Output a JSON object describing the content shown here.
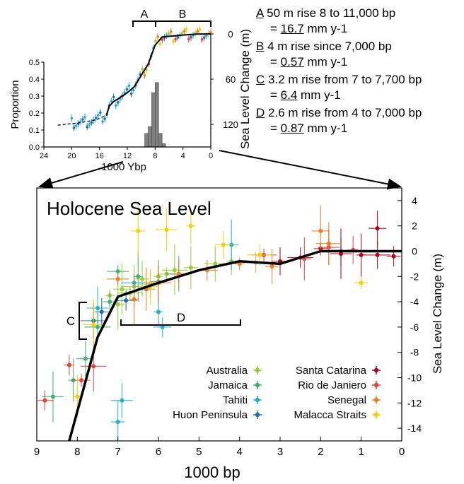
{
  "notes": [
    {
      "letter": "A",
      "text": "50 m rise 8 to 11,000 bp",
      "prefix": "= ",
      "value": "16.7",
      "unit": "mm y-1"
    },
    {
      "letter": "B",
      "text": "4 m rise since 7,000 bp",
      "prefix": "= ",
      "value": "0.57",
      "unit": "mm y-1"
    },
    {
      "letter": "C",
      "text": "3.2 m rise from 7 to 7,700 bp",
      "prefix": "= ",
      "value": "6.4",
      "unit": "mm y-1"
    },
    {
      "letter": "D",
      "text": "2.6 m rise from 4 to 7,000 bp",
      "prefix": "= ",
      "value": "0.87",
      "unit": "mm y-1"
    }
  ],
  "inset": {
    "bracket_a": "A",
    "bracket_b": "B"
  },
  "main": {
    "bracket_c": "C",
    "bracket_d": "D"
  },
  "colors": {
    "Australia": "#9acd32",
    "Jamaica": "#3cb371",
    "Tahiti": "#20b2cc",
    "Huon Peninsula": "#1f6fb4",
    "Santa Catarina": "#b00018",
    "Rio de Janiero": "#e8413c",
    "Senegal": "#f07b22",
    "Malacca Straits": "#f5d000",
    "curve": "#000000",
    "histogram": "#808080"
  },
  "chart_data": [
    {
      "type": "line",
      "title": "",
      "xlabel": "1000 Ybp",
      "ylabel": "Proportion",
      "y2label": "Sea Level Change (m)",
      "xlim": [
        24,
        0
      ],
      "ylim": [
        0,
        0.5
      ],
      "y2lim": [
        150,
        0
      ],
      "x_ticks": [
        24,
        20,
        16,
        12,
        8,
        4,
        0
      ],
      "y_ticks": [
        0.0,
        0.1,
        0.2,
        0.3,
        0.4,
        0.5
      ],
      "y2_ticks": [
        0,
        60,
        120
      ],
      "series": [
        {
          "style": "sea-level-curve",
          "x": [
            22.0,
            19.0,
            16.5,
            15.0,
            14.6,
            14.0,
            13.0,
            12.0,
            11.0,
            10.0,
            9.0,
            8.0,
            7.0,
            4.0,
            2.0,
            0.0
          ],
          "y": [
            121,
            118,
            114,
            108,
            96,
            90,
            84,
            78,
            70,
            55,
            40,
            15,
            4,
            1.5,
            0.2,
            0
          ]
        },
        {
          "style": "proportion-histogram",
          "x": [
            9.25,
            8.75,
            8.25,
            7.75,
            7.25,
            6.75
          ],
          "y": [
            0.08,
            0.12,
            0.32,
            0.38,
            0.08,
            0.02
          ]
        }
      ]
    },
    {
      "type": "scatter",
      "title": "Holocene Sea Level",
      "xlabel": "1000 bp",
      "ylabel": "Sea Level Change (m)",
      "xlim": [
        9,
        0
      ],
      "ylim": [
        -15,
        5
      ],
      "x_ticks": [
        9,
        8,
        7,
        6,
        5,
        4,
        3,
        2,
        1,
        0
      ],
      "y_ticks": [
        4,
        2,
        0,
        -2,
        -4,
        -6,
        -8,
        -10,
        -12,
        -14
      ],
      "grid": false,
      "legend": "bottom-right",
      "legend_entries": [
        "Australia",
        "Jamaica",
        "Tahiti",
        "Huon Peninsula",
        "Santa Catarina",
        "Rio de Janiero",
        "Senegal",
        "Malacca Straits"
      ],
      "curve": {
        "x": [
          8.2,
          7.5,
          7.0,
          6.0,
          5.0,
          4.0,
          3.0,
          2.0,
          1.0,
          0.0
        ],
        "y": [
          -15,
          -6.8,
          -3.6,
          -2.5,
          -1.5,
          -0.8,
          -1.0,
          0.0,
          0.0,
          0.0
        ]
      },
      "series": [
        {
          "name": "Australia",
          "x": [
            7.2,
            6.9,
            6.6,
            6.4,
            6.2,
            6.0,
            5.8,
            5.6,
            5.2,
            4.6,
            4.2,
            3.6,
            6.7,
            7.0
          ],
          "y": [
            -3.5,
            -3.0,
            -2.8,
            -2.2,
            -2.6,
            -2.0,
            -1.8,
            -1.5,
            -1.3,
            -1.0,
            -0.8,
            -0.9,
            -3.3,
            -4.2
          ]
        },
        {
          "name": "Jamaica",
          "x": [
            8.6,
            8.1,
            7.8,
            7.5,
            7.2,
            7.0,
            6.5,
            6.0,
            5.5,
            1.5
          ],
          "y": [
            -11.5,
            -10.2,
            -8.5,
            -6.0,
            -4.0,
            -1.6,
            -2.0,
            -2.4,
            -1.8,
            0.0
          ]
        },
        {
          "name": "Tahiti",
          "x": [
            7.0,
            6.9,
            6.0,
            5.9,
            6.6,
            4.2,
            7.5
          ],
          "y": [
            -13.5,
            -11.8,
            -4.8,
            -6.0,
            -2.5,
            0.5,
            -4.5
          ]
        },
        {
          "name": "Huon Peninsula",
          "x": [
            7.6,
            7.4,
            6.8
          ],
          "y": [
            -5.5,
            -4.8,
            -3.9
          ]
        },
        {
          "name": "Santa Catarina",
          "x": [
            3.0,
            2.5,
            2.0,
            1.5,
            1.0,
            0.6,
            0.6,
            0.2
          ],
          "y": [
            -0.8,
            -0.5,
            0.2,
            -0.2,
            -0.3,
            1.8,
            -0.3,
            -0.4
          ]
        },
        {
          "name": "Rio de Janiero",
          "x": [
            8.2,
            7.9,
            7.6,
            2.4,
            1.8,
            1.2,
            8.8,
            3.4
          ],
          "y": [
            -9.0,
            -10.2,
            -9.1,
            -0.6,
            0.3,
            0.1,
            -11.8,
            -0.3
          ]
        },
        {
          "name": "Senegal",
          "x": [
            7.0,
            6.6,
            6.3,
            6.0,
            5.5,
            4.8,
            4.0,
            2.0,
            1.8,
            3.2
          ],
          "y": [
            -2.2,
            -3.8,
            -3.0,
            -2.5,
            -1.8,
            -1.5,
            -1.0,
            1.6,
            0.6,
            -1.2
          ]
        },
        {
          "name": "Malacca Straits",
          "x": [
            6.5,
            5.8,
            5.2,
            4.4,
            3.5,
            1.0,
            7.6,
            8.0,
            6.2
          ],
          "y": [
            1.6,
            1.7,
            2.0,
            0.5,
            -0.3,
            -2.5,
            -5.8,
            -11.5,
            -2.8
          ]
        }
      ]
    }
  ]
}
